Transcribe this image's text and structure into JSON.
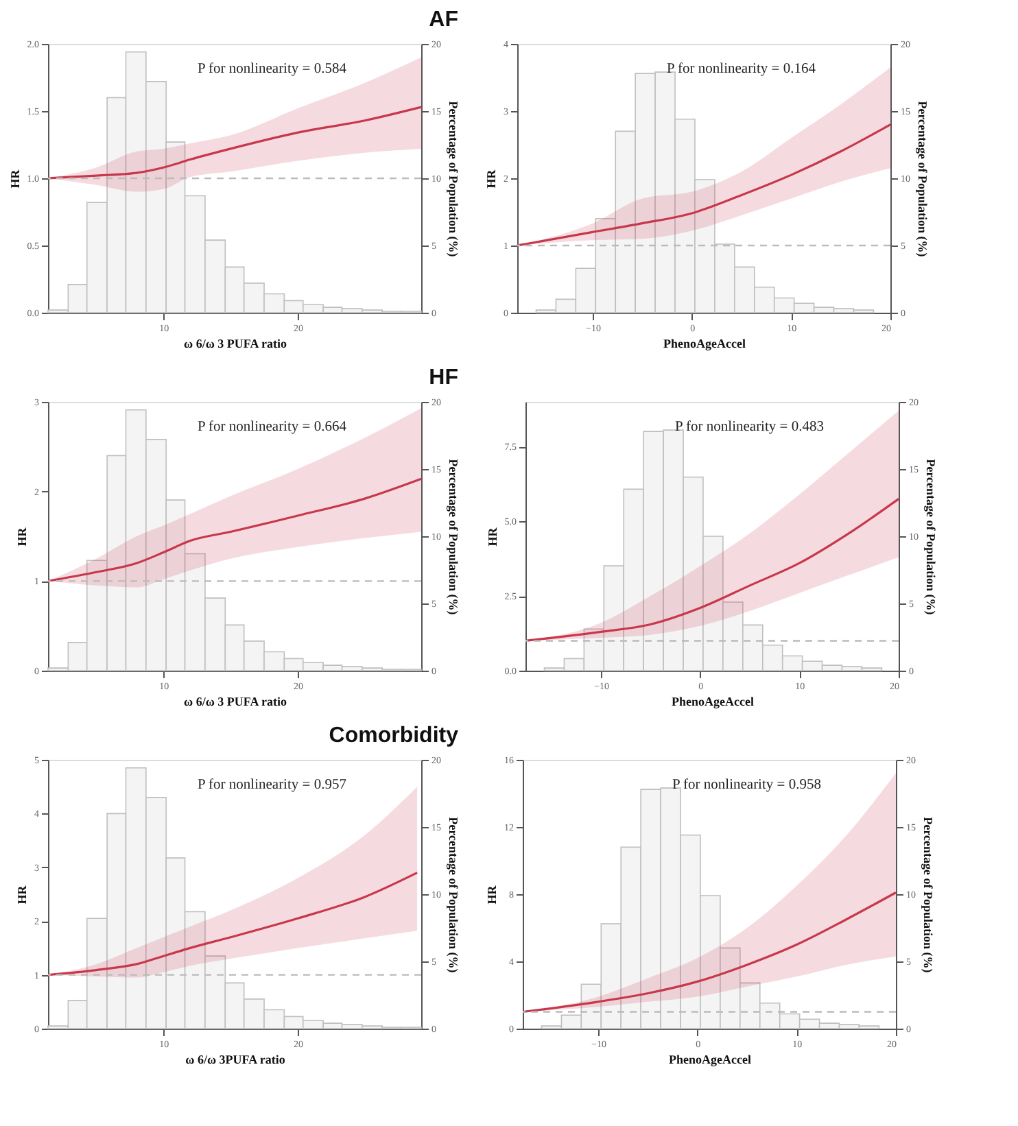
{
  "chart_data": [
    {
      "type": "line",
      "title": "AF",
      "xlabel": "ω 6/ω 3 PUFA ratio",
      "ylabel": "HR",
      "y2label": "Percentage of Population (%)",
      "xlim": [
        1.4,
        29.2
      ],
      "xticks": [
        10,
        20
      ],
      "ylim": [
        0,
        2
      ],
      "yticks": [
        {
          "value": 0,
          "label": "0.0"
        },
        {
          "value": 0.5,
          "label": "0.5"
        },
        {
          "value": 1,
          "label": "1.0"
        },
        {
          "value": 1.5,
          "label": "1.5"
        },
        {
          "value": 2,
          "label": "2.0"
        }
      ],
      "y2lim": [
        0,
        20
      ],
      "y2ticks": [
        0,
        5,
        10,
        15,
        20
      ],
      "grid": false,
      "annotations": [
        "P for nonlinearity = 0.584"
      ],
      "ref_lines": [
        {
          "axis": "y",
          "value": 1,
          "color": "#bbbbbb",
          "line_style": "dashed"
        }
      ],
      "series": [
        {
          "type": "histogram",
          "axis": "y2",
          "color": "#f4f4f4",
          "bins": [
            1.4,
            2.9,
            4.3,
            5.8,
            7.2,
            8.7,
            10.2,
            11.6,
            13.1,
            14.6,
            16.0,
            17.5,
            19.0,
            20.4,
            21.9,
            23.3,
            24.8,
            26.3,
            27.7,
            29.2
          ],
          "values": [
            0.2,
            2.1,
            8.2,
            16.0,
            19.4,
            17.2,
            12.7,
            8.7,
            5.4,
            3.4,
            2.2,
            1.4,
            0.9,
            0.6,
            0.4,
            0.3,
            0.2,
            0.1,
            0.1
          ]
        },
        {
          "color": "#c8374b",
          "x": [
            1.4,
            5,
            8,
            10,
            12,
            15,
            20,
            25,
            29.2
          ],
          "values": [
            1.0,
            1.02,
            1.04,
            1.08,
            1.14,
            1.22,
            1.34,
            1.43,
            1.53
          ],
          "lower": [
            1.0,
            0.95,
            0.9,
            0.92,
            1.01,
            1.05,
            1.13,
            1.19,
            1.22
          ],
          "upper": [
            1.0,
            1.08,
            1.2,
            1.22,
            1.26,
            1.32,
            1.52,
            1.71,
            1.9
          ]
        }
      ]
    },
    {
      "type": "line",
      "xlabel": "PhenoAgeAccel",
      "ylabel": "HR",
      "y2label": "Percentage of Population (%)",
      "xlim": [
        -17.6,
        20
      ],
      "xticks": [
        -10,
        0,
        10,
        20
      ],
      "ylim": [
        0,
        4
      ],
      "yticks": [
        0,
        1,
        2,
        3,
        4
      ],
      "y2lim": [
        0,
        20
      ],
      "y2ticks": [
        0,
        5,
        10,
        15,
        20
      ],
      "grid": false,
      "annotations": [
        "P for nonlinearity = 0.164"
      ],
      "ref_lines": [
        {
          "axis": "y",
          "value": 1,
          "color": "#bbbbbb",
          "line_style": "dashed"
        }
      ],
      "series": [
        {
          "type": "histogram",
          "axis": "y2",
          "color": "#f4f4f4",
          "bins": [
            -15.7,
            -13.7,
            -11.7,
            -9.7,
            -7.7,
            -5.7,
            -3.7,
            -1.7,
            0.3,
            2.3,
            4.3,
            6.3,
            8.3,
            10.3,
            12.3,
            14.3,
            16.3,
            18.3
          ],
          "values": [
            0.2,
            1.0,
            3.3,
            7.0,
            13.5,
            17.8,
            17.9,
            14.4,
            9.9,
            5.1,
            3.4,
            1.9,
            1.1,
            0.7,
            0.4,
            0.3,
            0.2
          ]
        },
        {
          "color": "#c8374b",
          "x": [
            -17.6,
            -10,
            -5,
            0,
            5,
            10,
            15,
            20
          ],
          "values": [
            1.0,
            1.2,
            1.33,
            1.48,
            1.75,
            2.05,
            2.4,
            2.8
          ],
          "lower": [
            1.0,
            1.08,
            1.1,
            1.22,
            1.45,
            1.7,
            1.95,
            2.15
          ],
          "upper": [
            1.0,
            1.33,
            1.7,
            1.8,
            2.1,
            2.6,
            3.1,
            3.65
          ]
        }
      ]
    },
    {
      "type": "line",
      "title": "HF",
      "xlabel": "ω 6/ω 3 PUFA ratio",
      "ylabel": "HR",
      "y2label": "Percentage of Population (%)",
      "xlim": [
        1.4,
        29.2
      ],
      "xticks": [
        10,
        20
      ],
      "ylim": [
        0,
        3
      ],
      "yticks": [
        0,
        1,
        2,
        3
      ],
      "y2lim": [
        0,
        20
      ],
      "y2ticks": [
        0,
        5,
        10,
        15,
        20
      ],
      "grid": false,
      "annotations": [
        "P for nonlinearity = 0.664"
      ],
      "ref_lines": [
        {
          "axis": "y",
          "value": 1,
          "color": "#bbbbbb",
          "line_style": "dashed"
        }
      ],
      "series": [
        {
          "type": "histogram",
          "axis": "y2",
          "color": "#f4f4f4",
          "bins": [
            1.4,
            2.9,
            4.3,
            5.8,
            7.2,
            8.7,
            10.2,
            11.6,
            13.1,
            14.6,
            16.0,
            17.5,
            19.0,
            20.4,
            21.9,
            23.3,
            24.8,
            26.3,
            27.7,
            29.2
          ],
          "values": [
            0.2,
            2.1,
            8.2,
            16.0,
            19.4,
            17.2,
            12.7,
            8.7,
            5.4,
            3.4,
            2.2,
            1.4,
            0.9,
            0.6,
            0.4,
            0.3,
            0.2,
            0.1,
            0.1
          ]
        },
        {
          "color": "#c8374b",
          "x": [
            1.4,
            5,
            8,
            10,
            12,
            15,
            20,
            25,
            29.2
          ],
          "values": [
            1.0,
            1.1,
            1.2,
            1.32,
            1.45,
            1.55,
            1.73,
            1.92,
            2.14
          ],
          "lower": [
            1.0,
            0.95,
            0.93,
            1.02,
            1.12,
            1.25,
            1.38,
            1.48,
            1.55
          ],
          "upper": [
            1.0,
            1.25,
            1.5,
            1.62,
            1.75,
            1.95,
            2.25,
            2.6,
            2.93
          ]
        }
      ]
    },
    {
      "type": "line",
      "xlabel": "PhenoAgeAccel",
      "ylabel": "HR",
      "y2label": "Percentage of Population (%)",
      "xlim": [
        -17.6,
        20
      ],
      "xticks": [
        -10,
        0,
        10,
        20
      ],
      "ylim": [
        0,
        9
      ],
      "yticks": [
        {
          "value": 0,
          "label": "0.0"
        },
        {
          "value": 2.5,
          "label": "2.5"
        },
        {
          "value": 5,
          "label": "5.0"
        },
        {
          "value": 7.5,
          "label": "7.5"
        }
      ],
      "y2lim": [
        0,
        20
      ],
      "y2ticks": [
        0,
        5,
        10,
        15,
        20
      ],
      "grid": false,
      "annotations": [
        "P for nonlinearity = 0.483"
      ],
      "ref_lines": [
        {
          "axis": "y",
          "value": 1,
          "color": "#bbbbbb",
          "line_style": "dashed"
        }
      ],
      "series": [
        {
          "type": "histogram",
          "axis": "y2",
          "color": "#f4f4f4",
          "bins": [
            -15.7,
            -13.7,
            -11.7,
            -9.7,
            -7.7,
            -5.7,
            -3.7,
            -1.7,
            0.3,
            2.3,
            4.3,
            6.3,
            8.3,
            10.3,
            12.3,
            14.3,
            16.3,
            18.3
          ],
          "values": [
            0.2,
            0.9,
            3.1,
            7.8,
            13.5,
            17.8,
            17.9,
            14.4,
            10.0,
            5.1,
            3.4,
            1.9,
            1.1,
            0.7,
            0.4,
            0.3,
            0.2
          ]
        },
        {
          "color": "#c8374b",
          "x": [
            -17.6,
            -10,
            -5,
            0,
            5,
            10,
            15,
            20
          ],
          "values": [
            1.0,
            1.3,
            1.55,
            2.1,
            2.85,
            3.6,
            4.6,
            5.75
          ],
          "lower": [
            1.0,
            1.1,
            1.2,
            1.5,
            2.0,
            2.6,
            3.2,
            3.8
          ],
          "upper": [
            1.0,
            1.6,
            2.5,
            3.5,
            4.6,
            5.9,
            7.3,
            8.7
          ]
        }
      ]
    },
    {
      "type": "line",
      "title": "Comorbidity",
      "xlabel": "ω 6/ω 3PUFA ratio",
      "ylabel": "HR",
      "y2label": "Percentage of Population (%)",
      "xlim": [
        1.4,
        29.2
      ],
      "xticks": [
        10,
        20
      ],
      "ylim": [
        0,
        5
      ],
      "yticks": [
        0,
        1,
        2,
        3,
        4,
        5
      ],
      "y2lim": [
        0,
        20
      ],
      "y2ticks": [
        0,
        5,
        10,
        15,
        20
      ],
      "grid": false,
      "annotations": [
        "P for nonlinearity = 0.957"
      ],
      "ref_lines": [
        {
          "axis": "y",
          "value": 1,
          "color": "#bbbbbb",
          "line_style": "dashed"
        }
      ],
      "series": [
        {
          "type": "histogram",
          "axis": "y2",
          "color": "#f4f4f4",
          "bins": [
            1.4,
            2.9,
            4.3,
            5.8,
            7.2,
            8.7,
            10.2,
            11.6,
            13.1,
            14.6,
            16.0,
            17.5,
            19.0,
            20.4,
            21.9,
            23.3,
            24.8,
            26.3,
            27.7,
            29.2
          ],
          "values": [
            0.2,
            2.1,
            8.2,
            16.0,
            19.4,
            17.2,
            12.7,
            8.7,
            5.4,
            3.4,
            2.2,
            1.4,
            0.9,
            0.6,
            0.4,
            0.3,
            0.2,
            0.1,
            0.1
          ]
        },
        {
          "color": "#c8374b",
          "x": [
            1.4,
            5,
            8,
            10,
            12,
            15,
            20,
            25,
            28.9
          ],
          "values": [
            1.0,
            1.09,
            1.2,
            1.35,
            1.5,
            1.7,
            2.05,
            2.45,
            2.9
          ],
          "lower": [
            1.0,
            0.97,
            0.95,
            1.05,
            1.17,
            1.3,
            1.5,
            1.68,
            1.82
          ],
          "upper": [
            1.0,
            1.2,
            1.5,
            1.7,
            1.9,
            2.2,
            2.8,
            3.6,
            4.5
          ]
        }
      ]
    },
    {
      "type": "line",
      "xlabel": "PhenoAgeAccel",
      "ylabel": "HR",
      "y2label": "Percentage of Population (%)",
      "xlim": [
        -17.6,
        20
      ],
      "xticks": [
        -10,
        0,
        10,
        20
      ],
      "ylim": [
        0,
        16
      ],
      "yticks": [
        0,
        4,
        8,
        12,
        16
      ],
      "y2lim": [
        0,
        20
      ],
      "y2ticks": [
        0,
        5,
        10,
        15,
        20
      ],
      "grid": false,
      "annotations": [
        "P for nonlinearity = 0.958"
      ],
      "ref_lines": [
        {
          "axis": "y",
          "value": 1,
          "color": "#bbbbbb",
          "line_style": "dashed"
        }
      ],
      "series": [
        {
          "type": "histogram",
          "axis": "y2",
          "color": "#f4f4f4",
          "bins": [
            -15.7,
            -13.7,
            -11.7,
            -9.7,
            -7.7,
            -5.7,
            -3.7,
            -1.7,
            0.3,
            2.3,
            4.3,
            6.3,
            8.3,
            10.3,
            12.3,
            14.3,
            16.3,
            18.3
          ],
          "values": [
            0.2,
            1.0,
            3.3,
            7.8,
            13.5,
            17.8,
            17.9,
            14.4,
            9.9,
            6.0,
            3.4,
            1.9,
            1.1,
            0.7,
            0.4,
            0.3,
            0.2
          ]
        },
        {
          "color": "#c8374b",
          "x": [
            -17.6,
            -10,
            -5,
            0,
            5,
            10,
            15,
            20
          ],
          "values": [
            1.0,
            1.6,
            2.1,
            2.8,
            3.8,
            5.0,
            6.5,
            8.1
          ],
          "lower": [
            1.0,
            1.3,
            1.6,
            1.9,
            2.5,
            3.1,
            3.8,
            4.3
          ],
          "upper": [
            1.0,
            1.9,
            3.0,
            4.2,
            6.0,
            8.5,
            11.5,
            15.2
          ]
        }
      ]
    }
  ]
}
